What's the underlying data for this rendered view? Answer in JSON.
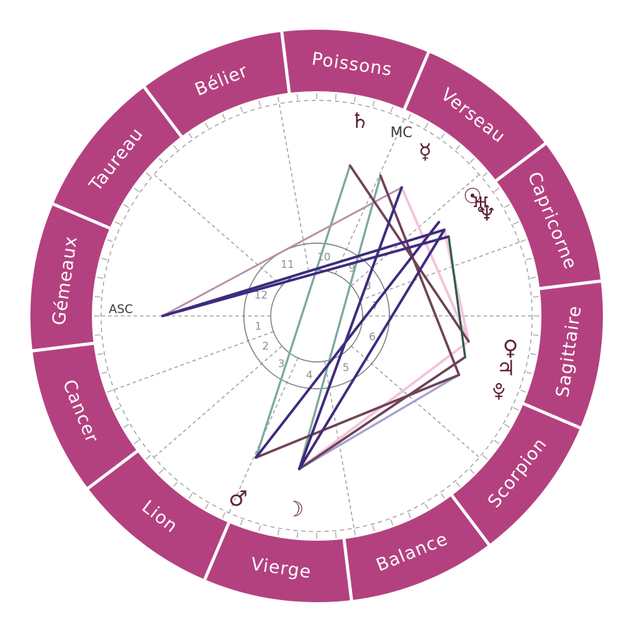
{
  "chart": {
    "colors": {
      "ring": "#b4417f",
      "ring_label": "#ffffff",
      "glyph": "#5e2230",
      "wheel_stroke": "#7d7d7d",
      "dash_stroke": "#969696",
      "house_number": "#8f8f8f",
      "angle_label": "#403a3e"
    },
    "ring": {
      "signs": [
        {
          "label": "Poissons",
          "angle": 82
        },
        {
          "label": "Bélier",
          "angle": 112
        },
        {
          "label": "Taureau",
          "angle": 142
        },
        {
          "label": "Gémeaux",
          "angle": 172
        },
        {
          "label": "Cancer",
          "angle": 202
        },
        {
          "label": "Lion",
          "angle": 232
        },
        {
          "label": "Vierge",
          "angle": 262
        },
        {
          "label": "Balance",
          "angle": 292
        },
        {
          "label": "Scorpion",
          "angle": 322
        },
        {
          "label": "Sagittaire",
          "angle": 352
        },
        {
          "label": "Capricorne",
          "angle": 22
        },
        {
          "label": "Verseau",
          "angle": 52
        }
      ]
    },
    "houses": {
      "cusp_angles": [
        180,
        200,
        221,
        246,
        280,
        319,
        0,
        20,
        41,
        66,
        100,
        139
      ],
      "numbers": [
        {
          "label": "1",
          "angle": 190
        },
        {
          "label": "2",
          "angle": 210.5
        },
        {
          "label": "3",
          "angle": 233.5
        },
        {
          "label": "4",
          "angle": 263
        },
        {
          "label": "5",
          "angle": 299.5
        },
        {
          "label": "6",
          "angle": 339.5
        },
        {
          "label": "7",
          "angle": 10
        },
        {
          "label": "8",
          "angle": 30.5
        },
        {
          "label": "9",
          "angle": 53.5
        },
        {
          "label": "10",
          "angle": 83
        },
        {
          "label": "11",
          "angle": 119.5
        },
        {
          "label": "12",
          "angle": 159.5
        }
      ]
    },
    "angle_labels": {
      "asc": {
        "text": "ASC",
        "angle": 180
      },
      "mc": {
        "text": "MC",
        "angle": 65.5
      }
    },
    "points": [
      {
        "name": "sun",
        "glyph": "☉",
        "angle": 37.5,
        "glyph_radius": 278
      },
      {
        "name": "moon",
        "glyph": "☽",
        "angle": 263.5,
        "glyph_radius": 276
      },
      {
        "name": "mercury",
        "glyph": "☿",
        "angle": 56.5,
        "glyph_radius": 278
      },
      {
        "name": "venus",
        "glyph": "♀",
        "angle": 350.5,
        "glyph_radius": 278
      },
      {
        "name": "mars",
        "glyph": "♂",
        "angle": 246.8,
        "glyph_radius": 282
      },
      {
        "name": "jupiter",
        "glyph": "♃",
        "angle": 344.5,
        "glyph_radius": 278
      },
      {
        "name": "saturn",
        "glyph": "♄",
        "angle": 77.5,
        "glyph_radius": 282
      },
      {
        "name": "uranus",
        "glyph": "♅",
        "angle": 34,
        "glyph_radius": 280
      },
      {
        "name": "neptune",
        "glyph": "♆",
        "angle": 31,
        "glyph_radius": 281
      },
      {
        "name": "pluto",
        "glyph": "pluto-orb",
        "angle": 337.5,
        "glyph_radius": 279
      },
      {
        "name": "asc",
        "glyph": null,
        "angle": 180,
        "glyph_radius": 0
      },
      {
        "name": "mc",
        "glyph": null,
        "angle": 65.5,
        "glyph_radius": 0
      }
    ],
    "aspect_colors": {
      "teal": "#7ca99b",
      "green": "#2e5a49",
      "purple": "#3e2b7e",
      "mauve": "#b78fa9",
      "pink": "#f3c3dc",
      "maroon": "#6f4257",
      "periwinkle": "#a5a0cf"
    },
    "aspects": [
      {
        "from": "saturn",
        "to": "mars",
        "color": "teal"
      },
      {
        "from": "mc",
        "to": "moon",
        "color": "teal"
      },
      {
        "from": "asc",
        "to": "mercury",
        "color": "mauve"
      },
      {
        "from": "moon",
        "to": "pluto",
        "color": "periwinkle"
      },
      {
        "from": "mercury",
        "to": "venus",
        "color": "pink"
      },
      {
        "from": "uranus",
        "to": "venus",
        "color": "pink"
      },
      {
        "from": "venus",
        "to": "moon",
        "color": "pink"
      },
      {
        "from": "saturn",
        "to": "venus",
        "color": "maroon"
      },
      {
        "from": "mc",
        "to": "pluto",
        "color": "maroon"
      },
      {
        "from": "mars",
        "to": "pluto",
        "color": "maroon"
      },
      {
        "from": "moon",
        "to": "jupiter",
        "color": "maroon"
      },
      {
        "from": "asc",
        "to": "uranus",
        "color": "purple"
      },
      {
        "from": "asc",
        "to": "neptune",
        "color": "purple"
      },
      {
        "from": "mercury",
        "to": "moon",
        "color": "purple"
      },
      {
        "from": "sun",
        "to": "mars",
        "color": "purple"
      },
      {
        "from": "uranus",
        "to": "moon",
        "color": "purple"
      },
      {
        "from": "neptune",
        "to": "jupiter",
        "color": "green"
      }
    ]
  }
}
